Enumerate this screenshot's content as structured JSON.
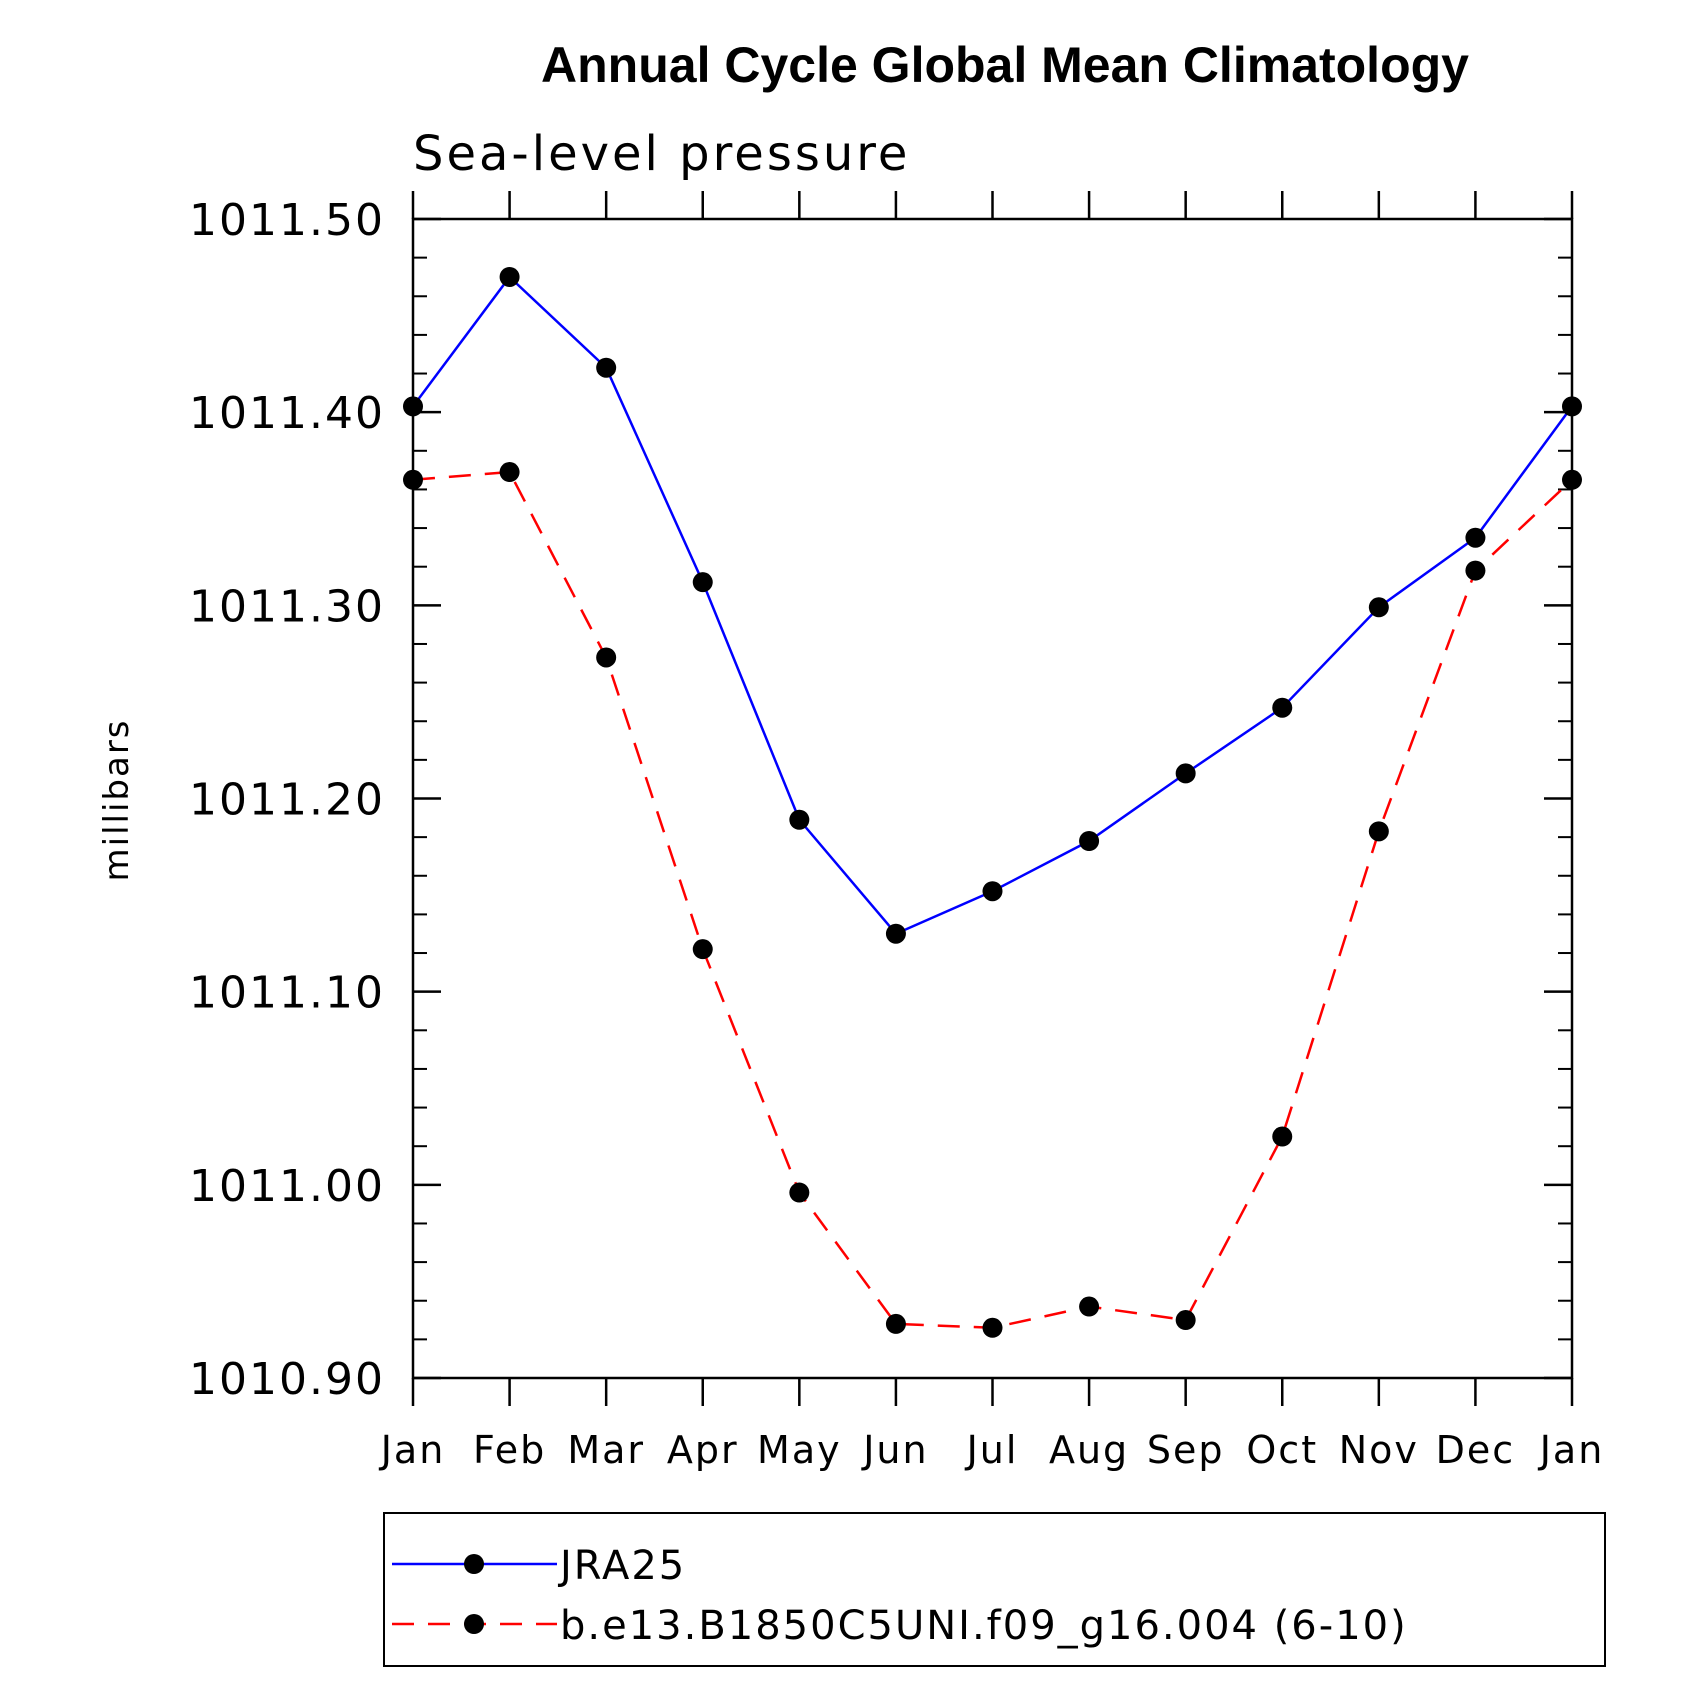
{
  "chart_data": {
    "type": "line",
    "title": "Annual Cycle Global Mean Climatology",
    "subtitle": "Sea-level pressure",
    "ylabel": "millibars",
    "xlabel": "",
    "categories": [
      "Jan",
      "Feb",
      "Mar",
      "Apr",
      "May",
      "Jun",
      "Jul",
      "Aug",
      "Sep",
      "Oct",
      "Nov",
      "Dec",
      "Jan"
    ],
    "ylim": [
      1010.9,
      1011.5
    ],
    "yticks": [
      "1011.50",
      "1011.40",
      "1011.30",
      "1011.20",
      "1011.10",
      "1011.00",
      "1010.90"
    ],
    "ytick_values": [
      1011.5,
      1011.4,
      1011.3,
      1011.2,
      1011.1,
      1011.0,
      1010.9
    ],
    "grid": false,
    "legend_position": "bottom",
    "series": [
      {
        "name": "JRA25",
        "color": "#0000ff",
        "line_style": "solid",
        "marker": "filled-circle",
        "values": [
          1011.403,
          1011.47,
          1011.423,
          1011.312,
          1011.189,
          1011.13,
          1011.152,
          1011.178,
          1011.213,
          1011.247,
          1011.299,
          1011.335,
          1011.403
        ]
      },
      {
        "name": "b.e13.B1850C5UNI.f09_g16.004 (6-10)",
        "color": "#ff0000",
        "line_style": "dashed",
        "marker": "filled-circle",
        "values": [
          1011.365,
          1011.369,
          1011.273,
          1011.122,
          1010.996,
          1010.928,
          1010.926,
          1010.937,
          1010.93,
          1011.025,
          1011.183,
          1011.318,
          1011.365
        ]
      }
    ]
  }
}
